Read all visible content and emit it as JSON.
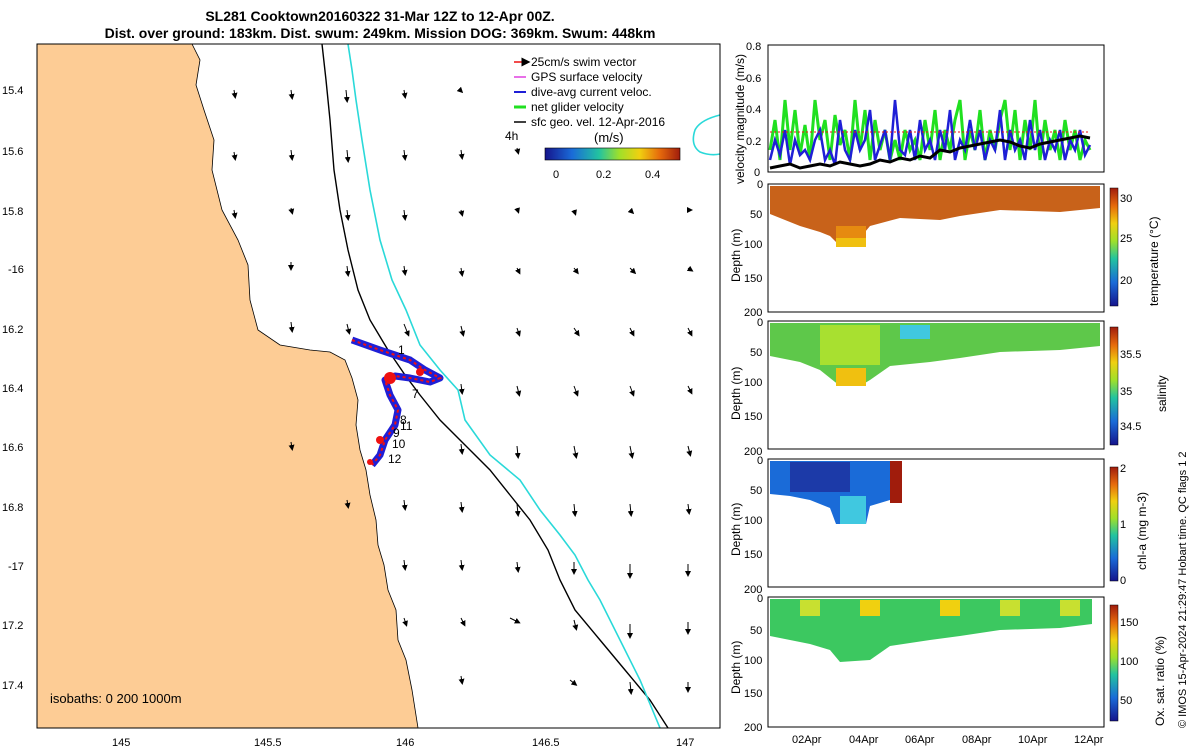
{
  "title": {
    "line1": "SL281 Cooktown20160322 31-Mar 12Z to 12-Apr 00Z.",
    "line2": "Dist. over ground: 183km. Dist. swum: 249km. Mission DOG: 369km. Swum: 448km"
  },
  "map": {
    "lat_ticks": [
      "15.4",
      "15.6",
      "15.8",
      "-16",
      "16.2",
      "16.4",
      "16.6",
      "16.8",
      "-17",
      "17.2",
      "17.4"
    ],
    "lon_ticks": [
      "145",
      "145.5",
      "146",
      "146.5",
      "147"
    ],
    "legend": {
      "items": [
        "25cm/s swim vector",
        "GPS surface velocity",
        "dive-avg current veloc.",
        "net glider velocity",
        "sfc geo. vel. 12-Apr-2016"
      ],
      "time_label": "4h",
      "units": "(m/s)",
      "colorbar_ticks": [
        "0",
        "0.2",
        "0.4"
      ]
    },
    "isobaths": "isobaths: 0   200  1000m",
    "track_labels": [
      "1",
      "7",
      "8",
      "9",
      "10",
      "11",
      "12"
    ],
    "colors": {
      "land": "#fdcc95",
      "track": "#1f1fd6",
      "gps": "#ee1111",
      "isobath200": "#000000",
      "isobath1000": "#2ad9d9"
    }
  },
  "panels": {
    "velocity": {
      "ylabel": "velocity magnitude (m/s)",
      "yticks": [
        "0",
        "0.2",
        "0.4",
        "0.6",
        "0.8"
      ]
    },
    "temperature": {
      "ylabel": "Depth (m)",
      "cbar_label": "temperature (°C)",
      "cbar_ticks": [
        "30",
        "25",
        "20"
      ],
      "yticks": [
        "0",
        "50",
        "100",
        "150",
        "200"
      ]
    },
    "salinity": {
      "ylabel": "Depth (m)",
      "cbar_label": "salinity",
      "cbar_ticks": [
        "35.5",
        "35",
        "34.5"
      ],
      "yticks": [
        "0",
        "50",
        "100",
        "150",
        "200"
      ]
    },
    "chla": {
      "ylabel": "Depth (m)",
      "cbar_label": "chl-a (mg m-3)",
      "cbar_ticks": [
        "2",
        "1",
        "0"
      ],
      "yticks": [
        "0",
        "50",
        "100",
        "150",
        "200"
      ]
    },
    "oxygen": {
      "ylabel": "Depth (m)",
      "cbar_label": "Ox. sat. ratio (%)",
      "cbar_ticks": [
        "150",
        "100",
        "50"
      ],
      "yticks": [
        "0",
        "50",
        "100",
        "150",
        "200"
      ]
    },
    "xticks": [
      "02Apr",
      "04Apr",
      "06Apr",
      "08Apr",
      "10Apr",
      "12Apr"
    ]
  },
  "credit": "© IMOS 15-Apr-2024 21:29:47 Hobart time. QC flags 1  2"
}
